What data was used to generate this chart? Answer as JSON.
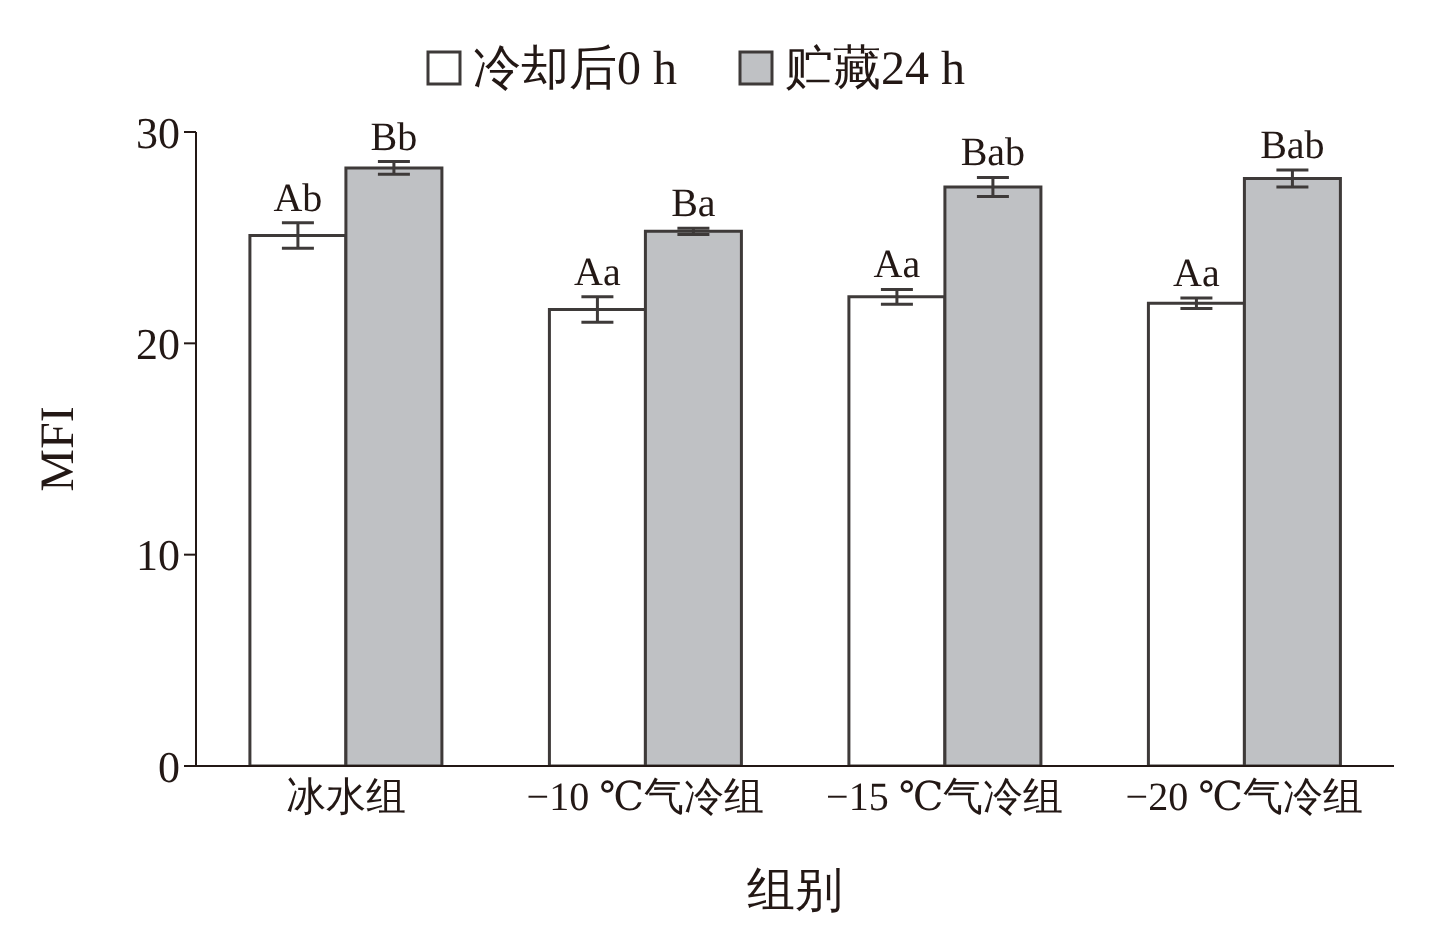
{
  "chart_data": {
    "type": "bar",
    "xlabel": "组别",
    "ylabel": "MFI",
    "categories": [
      "冰水组",
      "−10 ℃气冷组",
      "−15 ℃气冷组",
      "−20 ℃气冷组"
    ],
    "series": [
      {
        "name": "冷却后0 h",
        "color": "#ffffff",
        "values": [
          25.1,
          21.6,
          22.2,
          21.9
        ],
        "errors": [
          0.6,
          0.6,
          0.35,
          0.25
        ]
      },
      {
        "name": "贮藏24 h",
        "color": "#bfc1c4",
        "values": [
          28.3,
          25.3,
          27.4,
          27.8
        ],
        "errors": [
          0.3,
          0.15,
          0.45,
          0.4
        ]
      }
    ],
    "ylim": [
      0,
      30
    ],
    "yticks": [
      0,
      10,
      20,
      30
    ],
    "legend": "top",
    "annotations": [
      {
        "text": "Ab",
        "x": "冰水组",
        "y": 25.7
      },
      {
        "text": "Bb",
        "x": "冰水组",
        "y": 28.6
      },
      {
        "text": "Aa",
        "x": "−10 ℃气冷组",
        "y": 22.2
      },
      {
        "text": "Ba",
        "x": "−10 ℃气冷组",
        "y": 25.45
      },
      {
        "text": "Aa",
        "x": "−15 ℃气冷组",
        "y": 22.55
      },
      {
        "text": "Bab",
        "x": "−15 ℃气冷组",
        "y": 27.85
      },
      {
        "text": "Aa",
        "x": "−20 ℃气冷组",
        "y": 22.15
      },
      {
        "text": "Bab",
        "x": "−20 ℃气冷组",
        "y": 28.2
      }
    ]
  }
}
